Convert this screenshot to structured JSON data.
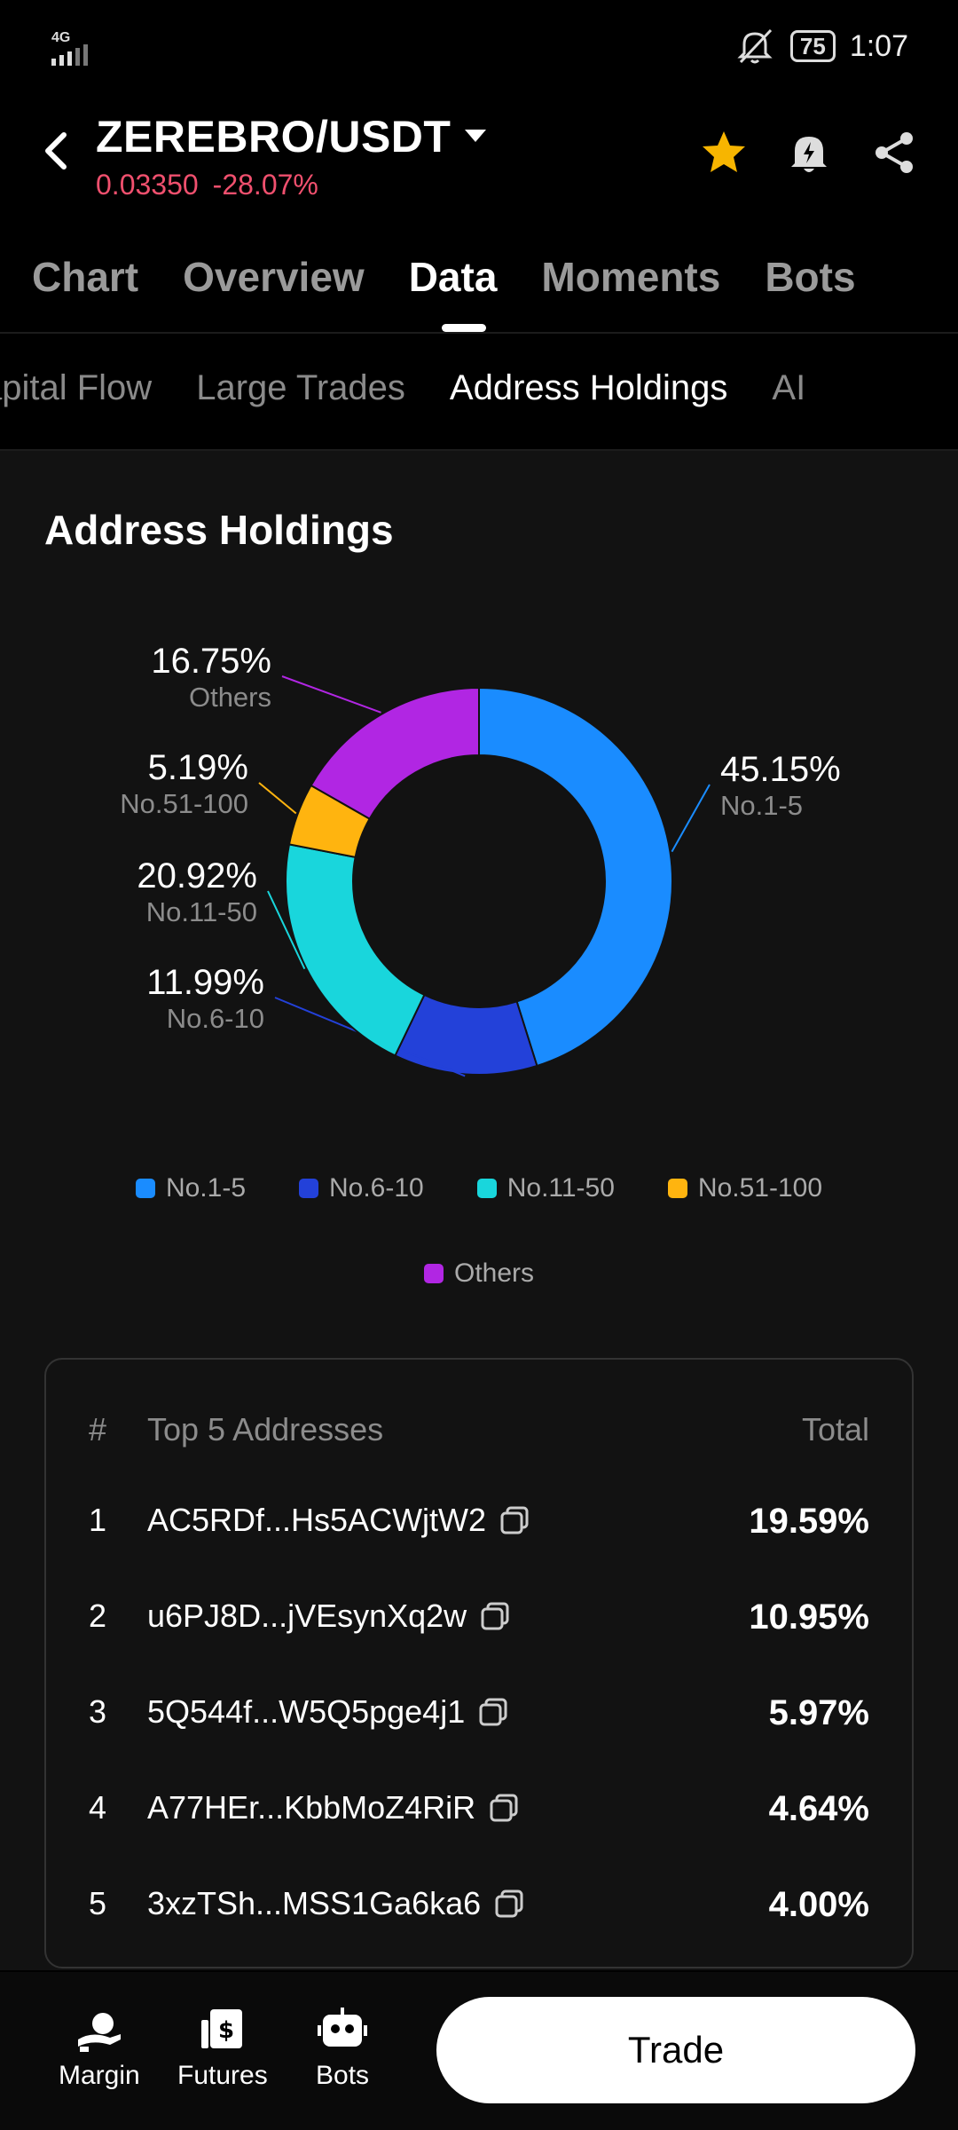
{
  "status_bar": {
    "network": "4G",
    "battery": "75",
    "time": "1:07"
  },
  "header": {
    "pair": "ZEREBRO/USDT",
    "price": "0.03350",
    "change": "-28.07%"
  },
  "main_tabs": [
    "Chart",
    "Overview",
    "Data",
    "Moments",
    "Bots"
  ],
  "sub_tabs": [
    "apital Flow",
    "Large Trades",
    "Address Holdings",
    "AI"
  ],
  "section_title": "Address Holdings",
  "chart_data": {
    "type": "pie",
    "donut": true,
    "slices": [
      {
        "label": "No.1-5",
        "value": 45.15,
        "display": "45.15%",
        "color": "#1a8cff"
      },
      {
        "label": "No.6-10",
        "value": 11.99,
        "display": "11.99%",
        "color": "#2341d9"
      },
      {
        "label": "No.11-50",
        "value": 20.92,
        "display": "20.92%",
        "color": "#19d6dc"
      },
      {
        "label": "No.51-100",
        "value": 5.19,
        "display": "5.19%",
        "color": "#ffb40f"
      },
      {
        "label": "Others",
        "value": 16.75,
        "display": "16.75%",
        "color": "#b126e3"
      }
    ],
    "legend": [
      "No.1-5",
      "No.6-10",
      "No.11-50",
      "No.51-100",
      "Others"
    ]
  },
  "table": {
    "headers": {
      "rank": "#",
      "address": "Top 5 Addresses",
      "total": "Total"
    },
    "rows": [
      {
        "rank": "1",
        "address": "AC5RDf...Hs5ACWjtW2",
        "total": "19.59%"
      },
      {
        "rank": "2",
        "address": "u6PJ8D...jVEsynXq2w",
        "total": "10.95%"
      },
      {
        "rank": "3",
        "address": "5Q544f...W5Q5pge4j1",
        "total": "5.97%"
      },
      {
        "rank": "4",
        "address": "A77HEr...KbbMoZ4RiR",
        "total": "4.64%"
      },
      {
        "rank": "5",
        "address": "3xzTSh...MSS1Ga6ka6",
        "total": "4.00%"
      }
    ]
  },
  "bottom_nav": {
    "margin": "Margin",
    "futures": "Futures",
    "bots": "Bots",
    "trade": "Trade"
  }
}
